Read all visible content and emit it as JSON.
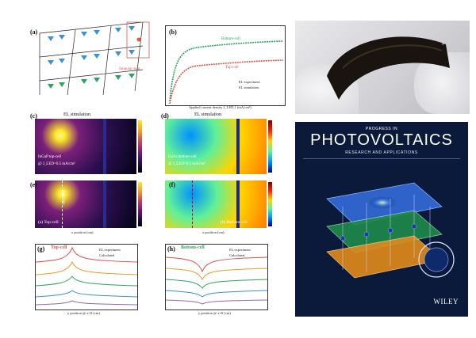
{
  "panel_labels": {
    "a": "(a)",
    "b": "(b)",
    "c": "(c)",
    "d": "(d)",
    "e": "(e)",
    "f": "(f)",
    "g": "(g)",
    "h": "(h)"
  },
  "panel_a": {
    "singular_spot": "Singular spot"
  },
  "panel_b": {
    "ylabel": "External radiative efficiency (ERE)",
    "xlabel": "Applied current density J_LED,1 (mA/cm²)",
    "bottom_cell": "Bottom-cell",
    "top_cell": "Top-cell",
    "legend_exp": "EL experiment",
    "legend_sim": "EL simulation"
  },
  "panel_c": {
    "title": "EL simulation",
    "cell": "InGaP top-cell",
    "density": "@ J_LED=0.5 mA/cm²",
    "ylabel": "EL emission rate (photons·s⁻¹·cm⁻²)"
  },
  "panel_d": {
    "title": "EL simulation",
    "cell": "GaAs bottom-cell",
    "density": "@ J_LED=0.5 mA/cm²",
    "ylabel": "EL emission rate (photons·s⁻¹·cm⁻²)"
  },
  "panel_e": {
    "scan_line": "Scan line",
    "corner": "(a) Top-cell",
    "xlabel": "x position (cm)",
    "ylabel": "y position"
  },
  "panel_f": {
    "corner": "(b) Bottom-cell",
    "xlabel": "x position (cm)"
  },
  "panel_g": {
    "title": "Top-cell",
    "legend_exp": "EL experiment",
    "legend_calc": "Calculated",
    "xlabel": "y position @ x=0 (cm)",
    "ylabel": "Absolute EL emission rate"
  },
  "panel_h": {
    "title": "Bottom-cell",
    "legend_exp": "EL experiment",
    "legend_calc": "Calculated",
    "xlabel": "y position @ x=0 (cm)"
  },
  "cover": {
    "brand_top": "PROGRESS IN",
    "brand_main": "PHOTOVOLTAICS",
    "brand_sub": "RESEARCH AND APPLICATIONS",
    "publisher": "WILEY"
  },
  "colors": {
    "navy": "#0b1a3a",
    "accent": "#e8b400",
    "green": "#2ca25f",
    "red": "#d9534f"
  }
}
